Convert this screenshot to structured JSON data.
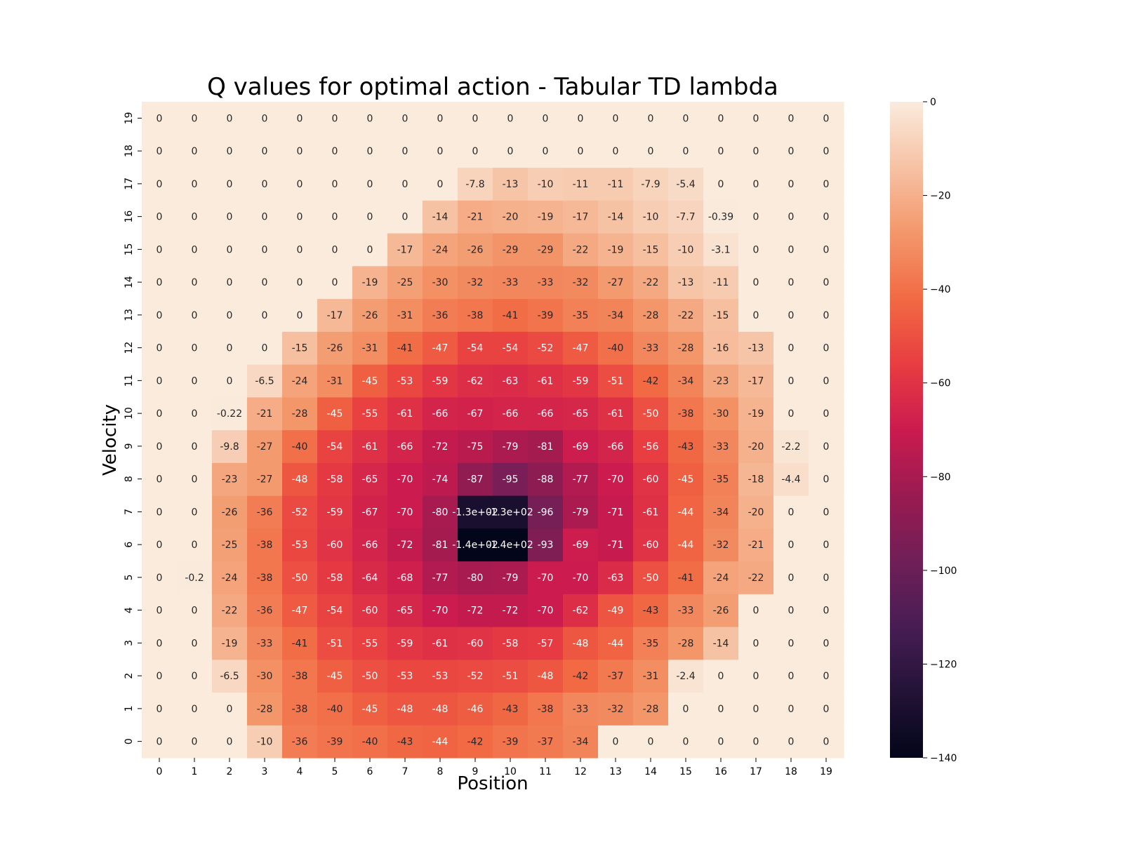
{
  "chart_data": {
    "type": "heatmap",
    "title": "Q values for optimal action - Tabular TD lambda",
    "xlabel": "Position",
    "ylabel": "Velocity",
    "x_ticks": [
      "0",
      "1",
      "2",
      "3",
      "4",
      "5",
      "6",
      "7",
      "8",
      "9",
      "10",
      "11",
      "12",
      "13",
      "14",
      "15",
      "16",
      "17",
      "18",
      "19"
    ],
    "y_ticks": [
      "0",
      "1",
      "2",
      "3",
      "4",
      "5",
      "6",
      "7",
      "8",
      "9",
      "10",
      "11",
      "12",
      "13",
      "14",
      "15",
      "16",
      "17",
      "18",
      "19"
    ],
    "colormap": "rocket",
    "vmin": -140,
    "vmax": 0,
    "colorbar_ticks": [
      "0",
      "−20",
      "−40",
      "−60",
      "−80",
      "−100",
      "−120",
      "−140"
    ],
    "colorbar_tick_values": [
      0,
      -20,
      -40,
      -60,
      -80,
      -100,
      -120,
      -140
    ],
    "values": [
      [
        0,
        0,
        0,
        -10,
        -36,
        -39,
        -40,
        -43,
        -44,
        -42,
        -39,
        -37,
        -34,
        0,
        0,
        0,
        0,
        0,
        0,
        0
      ],
      [
        0,
        0,
        0,
        -28,
        -38,
        -40,
        -45,
        -48,
        -48,
        -46,
        -43,
        -38,
        -33,
        -32,
        -28,
        0,
        0,
        0,
        0,
        0
      ],
      [
        0,
        0,
        -6.5,
        -30,
        -38,
        -45,
        -50,
        -53,
        -53,
        -52,
        -51,
        -48,
        -42,
        -37,
        -31,
        -2.4,
        0,
        0,
        0,
        0
      ],
      [
        0,
        0,
        -19,
        -33,
        -41,
        -51,
        -55,
        -59,
        -61,
        -60,
        -58,
        -57,
        -48,
        -44,
        -35,
        -28,
        -14,
        0,
        0,
        0
      ],
      [
        0,
        0,
        -22,
        -36,
        -47,
        -54,
        -60,
        -65,
        -70,
        -72,
        -72,
        -70,
        -62,
        -49,
        -43,
        -33,
        -26,
        0,
        0,
        0
      ],
      [
        0,
        -0.2,
        -24,
        -38,
        -50,
        -58,
        -64,
        -68,
        -77,
        -80,
        -79,
        -70,
        -70,
        -63,
        -50,
        -41,
        -24,
        -22,
        0,
        0
      ],
      [
        0,
        0,
        -25,
        -38,
        -53,
        -60,
        -66,
        -72,
        -81,
        -140,
        -140,
        -93,
        -69,
        -71,
        -60,
        -44,
        -32,
        -21,
        0,
        0
      ],
      [
        0,
        0,
        -26,
        -36,
        -52,
        -59,
        -67,
        -70,
        -80,
        -130,
        -130,
        -96,
        -79,
        -71,
        -61,
        -44,
        -34,
        -20,
        0,
        0
      ],
      [
        0,
        0,
        -23,
        -27,
        -48,
        -58,
        -65,
        -70,
        -74,
        -87,
        -95,
        -88,
        -77,
        -70,
        -60,
        -45,
        -35,
        -18,
        -4.4,
        0
      ],
      [
        0,
        0,
        -9.8,
        -27,
        -40,
        -54,
        -61,
        -66,
        -72,
        -75,
        -79,
        -81,
        -69,
        -66,
        -56,
        -43,
        -33,
        -20,
        -2.2,
        0
      ],
      [
        0,
        0,
        -0.22,
        -21,
        -28,
        -45,
        -55,
        -61,
        -66,
        -67,
        -66,
        -66,
        -65,
        -61,
        -50,
        -38,
        -30,
        -19,
        0,
        0
      ],
      [
        0,
        0,
        0,
        -6.5,
        -24,
        -31,
        -45,
        -53,
        -59,
        -62,
        -63,
        -61,
        -59,
        -51,
        -42,
        -34,
        -23,
        -17,
        0,
        0
      ],
      [
        0,
        0,
        0,
        0,
        -15,
        -26,
        -31,
        -41,
        -47,
        -54,
        -54,
        -52,
        -47,
        -40,
        -33,
        -28,
        -16,
        -13,
        0,
        0
      ],
      [
        0,
        0,
        0,
        0,
        0,
        -17,
        -26,
        -31,
        -36,
        -38,
        -41,
        -39,
        -35,
        -34,
        -28,
        -22,
        -15,
        0,
        0,
        0
      ],
      [
        0,
        0,
        0,
        0,
        0,
        0,
        -19,
        -25,
        -30,
        -32,
        -33,
        -33,
        -32,
        -27,
        -22,
        -13,
        -11,
        0,
        0,
        0
      ],
      [
        0,
        0,
        0,
        0,
        0,
        0,
        0,
        -17,
        -24,
        -26,
        -29,
        -29,
        -22,
        -19,
        -15,
        -10,
        -3.1,
        0,
        0,
        0
      ],
      [
        0,
        0,
        0,
        0,
        0,
        0,
        0,
        0,
        -14,
        -21,
        -20,
        -19,
        -17,
        -14,
        -10,
        -7.7,
        -0.39,
        0,
        0,
        0
      ],
      [
        0,
        0,
        0,
        0,
        0,
        0,
        0,
        0,
        0,
        -7.8,
        -13,
        -10,
        -11,
        -11,
        -7.9,
        -5.4,
        0,
        0,
        0,
        0
      ],
      [
        0,
        0,
        0,
        0,
        0,
        0,
        0,
        0,
        0,
        0,
        0,
        0,
        0,
        0,
        0,
        0,
        0,
        0,
        0,
        0
      ],
      [
        0,
        0,
        0,
        0,
        0,
        0,
        0,
        0,
        0,
        0,
        0,
        0,
        0,
        0,
        0,
        0,
        0,
        0,
        0,
        0
      ]
    ],
    "annotations": [
      [
        "0",
        "0",
        "0",
        "-10",
        "-36",
        "-39",
        "-40",
        "-43",
        "-44",
        "-42",
        "-39",
        "-37",
        "-34",
        "0",
        "0",
        "0",
        "0",
        "0",
        "0",
        "0"
      ],
      [
        "0",
        "0",
        "0",
        "-28",
        "-38",
        "-40",
        "-45",
        "-48",
        "-48",
        "-46",
        "-43",
        "-38",
        "-33",
        "-32",
        "-28",
        "0",
        "0",
        "0",
        "0",
        "0"
      ],
      [
        "0",
        "0",
        "-6.5",
        "-30",
        "-38",
        "-45",
        "-50",
        "-53",
        "-53",
        "-52",
        "-51",
        "-48",
        "-42",
        "-37",
        "-31",
        "-2.4",
        "0",
        "0",
        "0",
        "0"
      ],
      [
        "0",
        "0",
        "-19",
        "-33",
        "-41",
        "-51",
        "-55",
        "-59",
        "-61",
        "-60",
        "-58",
        "-57",
        "-48",
        "-44",
        "-35",
        "-28",
        "-14",
        "0",
        "0",
        "0"
      ],
      [
        "0",
        "0",
        "-22",
        "-36",
        "-47",
        "-54",
        "-60",
        "-65",
        "-70",
        "-72",
        "-72",
        "-70",
        "-62",
        "-49",
        "-43",
        "-33",
        "-26",
        "0",
        "0",
        "0"
      ],
      [
        "0",
        "-0.2",
        "-24",
        "-38",
        "-50",
        "-58",
        "-64",
        "-68",
        "-77",
        "-80",
        "-79",
        "-70",
        "-70",
        "-63",
        "-50",
        "-41",
        "-24",
        "-22",
        "0",
        "0"
      ],
      [
        "0",
        "0",
        "-25",
        "-38",
        "-53",
        "-60",
        "-66",
        "-72",
        "-81",
        "-1.4e+02",
        "-1.4e+02",
        "-93",
        "-69",
        "-71",
        "-60",
        "-44",
        "-32",
        "-21",
        "0",
        "0"
      ],
      [
        "0",
        "0",
        "-26",
        "-36",
        "-52",
        "-59",
        "-67",
        "-70",
        "-80",
        "-1.3e+02",
        "-1.3e+02",
        "-96",
        "-79",
        "-71",
        "-61",
        "-44",
        "-34",
        "-20",
        "0",
        "0"
      ],
      [
        "0",
        "0",
        "-23",
        "-27",
        "-48",
        "-58",
        "-65",
        "-70",
        "-74",
        "-87",
        "-95",
        "-88",
        "-77",
        "-70",
        "-60",
        "-45",
        "-35",
        "-18",
        "-4.4",
        "0"
      ],
      [
        "0",
        "0",
        "-9.8",
        "-27",
        "-40",
        "-54",
        "-61",
        "-66",
        "-72",
        "-75",
        "-79",
        "-81",
        "-69",
        "-66",
        "-56",
        "-43",
        "-33",
        "-20",
        "-2.2",
        "0"
      ],
      [
        "0",
        "0",
        "-0.22",
        "-21",
        "-28",
        "-45",
        "-55",
        "-61",
        "-66",
        "-67",
        "-66",
        "-66",
        "-65",
        "-61",
        "-50",
        "-38",
        "-30",
        "-19",
        "0",
        "0"
      ],
      [
        "0",
        "0",
        "0",
        "-6.5",
        "-24",
        "-31",
        "-45",
        "-53",
        "-59",
        "-62",
        "-63",
        "-61",
        "-59",
        "-51",
        "-42",
        "-34",
        "-23",
        "-17",
        "0",
        "0"
      ],
      [
        "0",
        "0",
        "0",
        "0",
        "-15",
        "-26",
        "-31",
        "-41",
        "-47",
        "-54",
        "-54",
        "-52",
        "-47",
        "-40",
        "-33",
        "-28",
        "-16",
        "-13",
        "0",
        "0"
      ],
      [
        "0",
        "0",
        "0",
        "0",
        "0",
        "-17",
        "-26",
        "-31",
        "-36",
        "-38",
        "-41",
        "-39",
        "-35",
        "-34",
        "-28",
        "-22",
        "-15",
        "0",
        "0",
        "0"
      ],
      [
        "0",
        "0",
        "0",
        "0",
        "0",
        "0",
        "-19",
        "-25",
        "-30",
        "-32",
        "-33",
        "-33",
        "-32",
        "-27",
        "-22",
        "-13",
        "-11",
        "0",
        "0",
        "0"
      ],
      [
        "0",
        "0",
        "0",
        "0",
        "0",
        "0",
        "0",
        "-17",
        "-24",
        "-26",
        "-29",
        "-29",
        "-22",
        "-19",
        "-15",
        "-10",
        "-3.1",
        "0",
        "0",
        "0"
      ],
      [
        "0",
        "0",
        "0",
        "0",
        "0",
        "0",
        "0",
        "0",
        "-14",
        "-21",
        "-20",
        "-19",
        "-17",
        "-14",
        "-10",
        "-7.7",
        "-0.39",
        "0",
        "0",
        "0"
      ],
      [
        "0",
        "0",
        "0",
        "0",
        "0",
        "0",
        "0",
        "0",
        "0",
        "-7.8",
        "-13",
        "-10",
        "-11",
        "-11",
        "-7.9",
        "-5.4",
        "0",
        "0",
        "0",
        "0"
      ],
      [
        "0",
        "0",
        "0",
        "0",
        "0",
        "0",
        "0",
        "0",
        "0",
        "0",
        "0",
        "0",
        "0",
        "0",
        "0",
        "0",
        "0",
        "0",
        "0",
        "0"
      ],
      [
        "0",
        "0",
        "0",
        "0",
        "0",
        "0",
        "0",
        "0",
        "0",
        "0",
        "0",
        "0",
        "0",
        "0",
        "0",
        "0",
        "0",
        "0",
        "0",
        "0"
      ]
    ],
    "grid": false,
    "colorbar_placement": "right"
  }
}
